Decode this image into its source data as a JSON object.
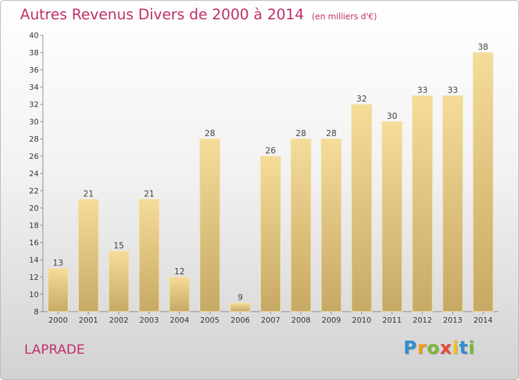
{
  "chart_data": {
    "type": "bar",
    "title": "Autres Revenus Divers de 2000 à 2014",
    "subtitle": "(en milliers d'€)",
    "categories": [
      "2000",
      "2001",
      "2002",
      "2003",
      "2004",
      "2005",
      "2006",
      "2007",
      "2008",
      "2009",
      "2010",
      "2011",
      "2012",
      "2013",
      "2014"
    ],
    "values": [
      13,
      21,
      15,
      21,
      12,
      28,
      9,
      26,
      28,
      28,
      32,
      30,
      33,
      33,
      38
    ],
    "ylim": [
      8,
      40
    ],
    "yticks": [
      8,
      10,
      12,
      14,
      16,
      18,
      20,
      22,
      24,
      26,
      28,
      30,
      32,
      34,
      36,
      38,
      40
    ],
    "grid": false,
    "bar_color": "#ecd08a"
  },
  "footer": {
    "location": "LAPRADE",
    "logo_letters": [
      "P",
      "r",
      "o",
      "x",
      "i",
      "t",
      "i"
    ],
    "logo_colors": [
      "#2f8fd0",
      "#f39c12",
      "#7ab83a",
      "#e74c3c",
      "#f1c40f",
      "#2f8fd0",
      "#7ab83a"
    ]
  }
}
